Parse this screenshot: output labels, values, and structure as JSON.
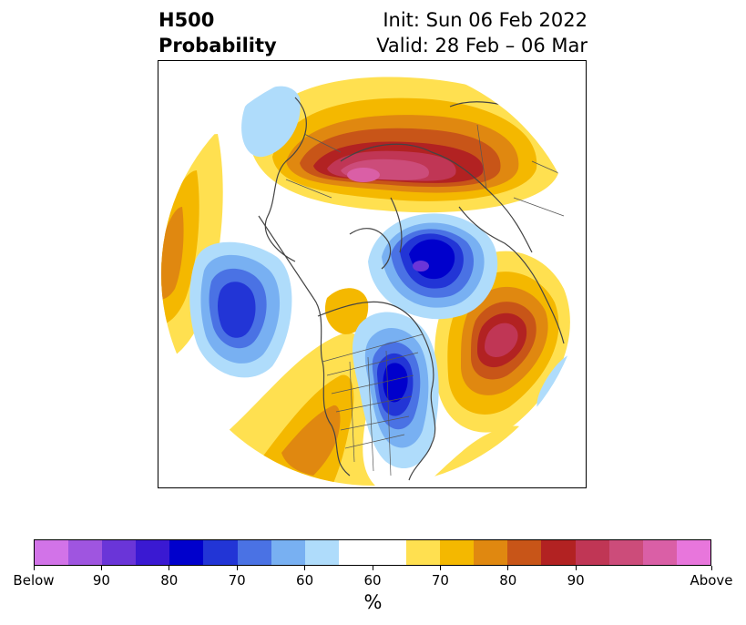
{
  "header": {
    "title_line1": "H500",
    "title_line2": "Probability",
    "init_label": "Init: Sun 06 Feb 2022",
    "valid_label": "Valid: 28 Feb – 06 Mar"
  },
  "map": {
    "projection": "north-polar-stereographic",
    "features": [
      "coastlines",
      "country-borders",
      "us-state-borders"
    ]
  },
  "colorbar": {
    "label": "%",
    "colors": [
      "#d273e8",
      "#9f55e0",
      "#6a35d8",
      "#3a19d2",
      "#0000cc",
      "#2235d6",
      "#4a72e4",
      "#78b0f2",
      "#afdcfb",
      "#ffffff",
      "#ffe050",
      "#f4b800",
      "#e08810",
      "#c85518",
      "#b22222",
      "#c03655",
      "#cc4c7a",
      "#da5fa6",
      "#e876dc"
    ],
    "tick_labels": [
      "Below",
      "90",
      "80",
      "70",
      "60",
      "60",
      "70",
      "80",
      "90",
      "Above"
    ]
  },
  "colors": {
    "below_extreme": "#d273e8",
    "above_extreme": "#e876dc",
    "neutral": "#ffffff"
  }
}
